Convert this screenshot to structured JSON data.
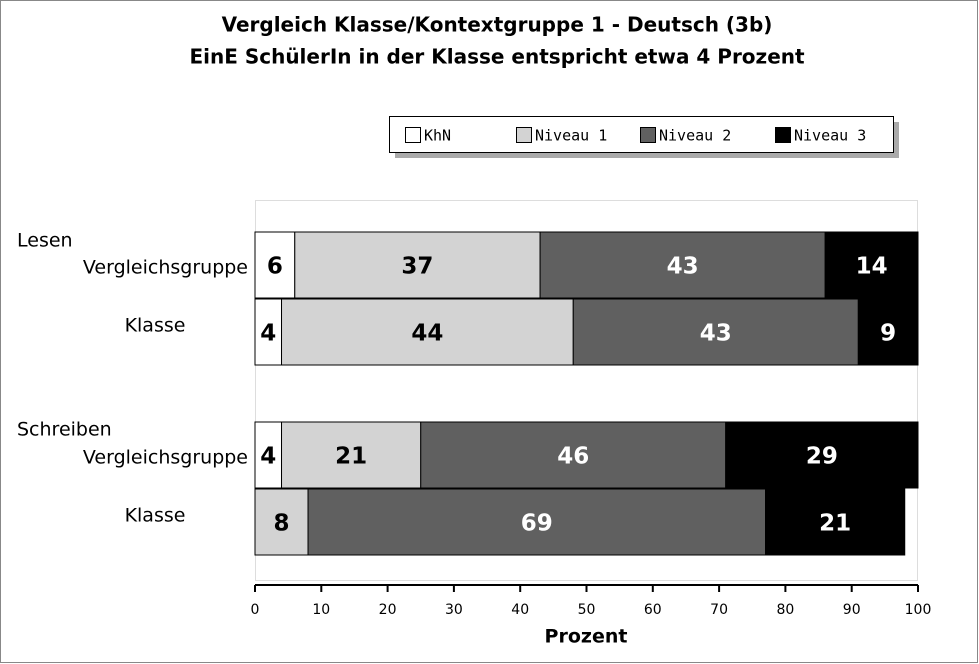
{
  "chart_data": {
    "type": "stacked-bar-horizontal",
    "title": "Vergleich Klasse/Kontextgruppe 1 - Deutsch (3b)",
    "subtitle": "EinE SchülerIn in der Klasse entspricht etwa 4 Prozent",
    "groups": [
      "Lesen",
      "Schreiben"
    ],
    "categories": [
      "Vergleichsgruppe",
      "Klasse",
      "Vergleichsgruppe",
      "Klasse"
    ],
    "series": [
      {
        "name": "KhN",
        "color": "#ffffff",
        "values": [
          6,
          4,
          4,
          null
        ]
      },
      {
        "name": "Niveau 1",
        "color": "#d3d3d3",
        "values": [
          37,
          44,
          21,
          8
        ]
      },
      {
        "name": "Niveau 2",
        "color": "#606060",
        "values": [
          43,
          43,
          46,
          69
        ]
      },
      {
        "name": "Niveau 3",
        "color": "#000000",
        "values": [
          14,
          9,
          29,
          21
        ]
      }
    ],
    "xlabel": "Prozent",
    "xlim": [
      0,
      100
    ],
    "xticks": [
      0,
      10,
      20,
      30,
      40,
      50,
      60,
      70,
      80,
      90,
      100
    ],
    "grid": false,
    "legend": "top-right"
  }
}
